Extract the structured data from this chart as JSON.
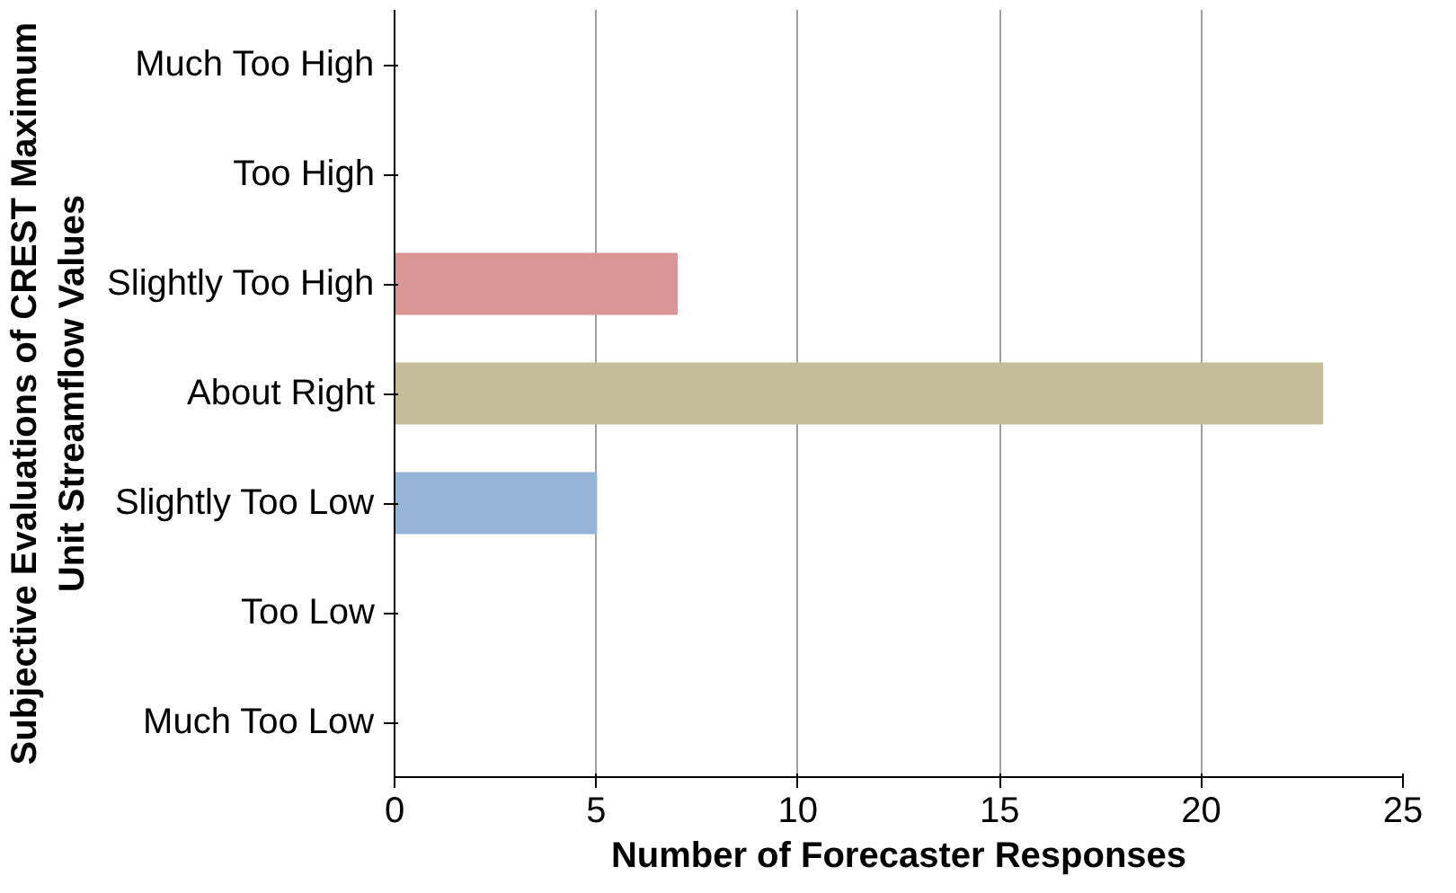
{
  "chart_data": {
    "type": "bar",
    "orientation": "horizontal",
    "categories": [
      "Much Too High",
      "Too High",
      "Slightly Too High",
      "About Right",
      "Slightly Too Low",
      "Too Low",
      "Much Too Low"
    ],
    "values": [
      0,
      0,
      7,
      23,
      5,
      0,
      0
    ],
    "colors": [
      "#5a1f1f",
      "#953735",
      "#d99694",
      "#c4bd97",
      "#95b3d7",
      "#376092",
      "#1f3450"
    ],
    "xlim": [
      0,
      25
    ],
    "xticks": [
      0,
      5,
      10,
      15,
      20,
      25
    ],
    "xlabel": "Number of Forecaster Responses",
    "ylabel": "Subjective Evaluations of CREST Maximum\nUnit Streamflow Values",
    "grid": "x"
  }
}
